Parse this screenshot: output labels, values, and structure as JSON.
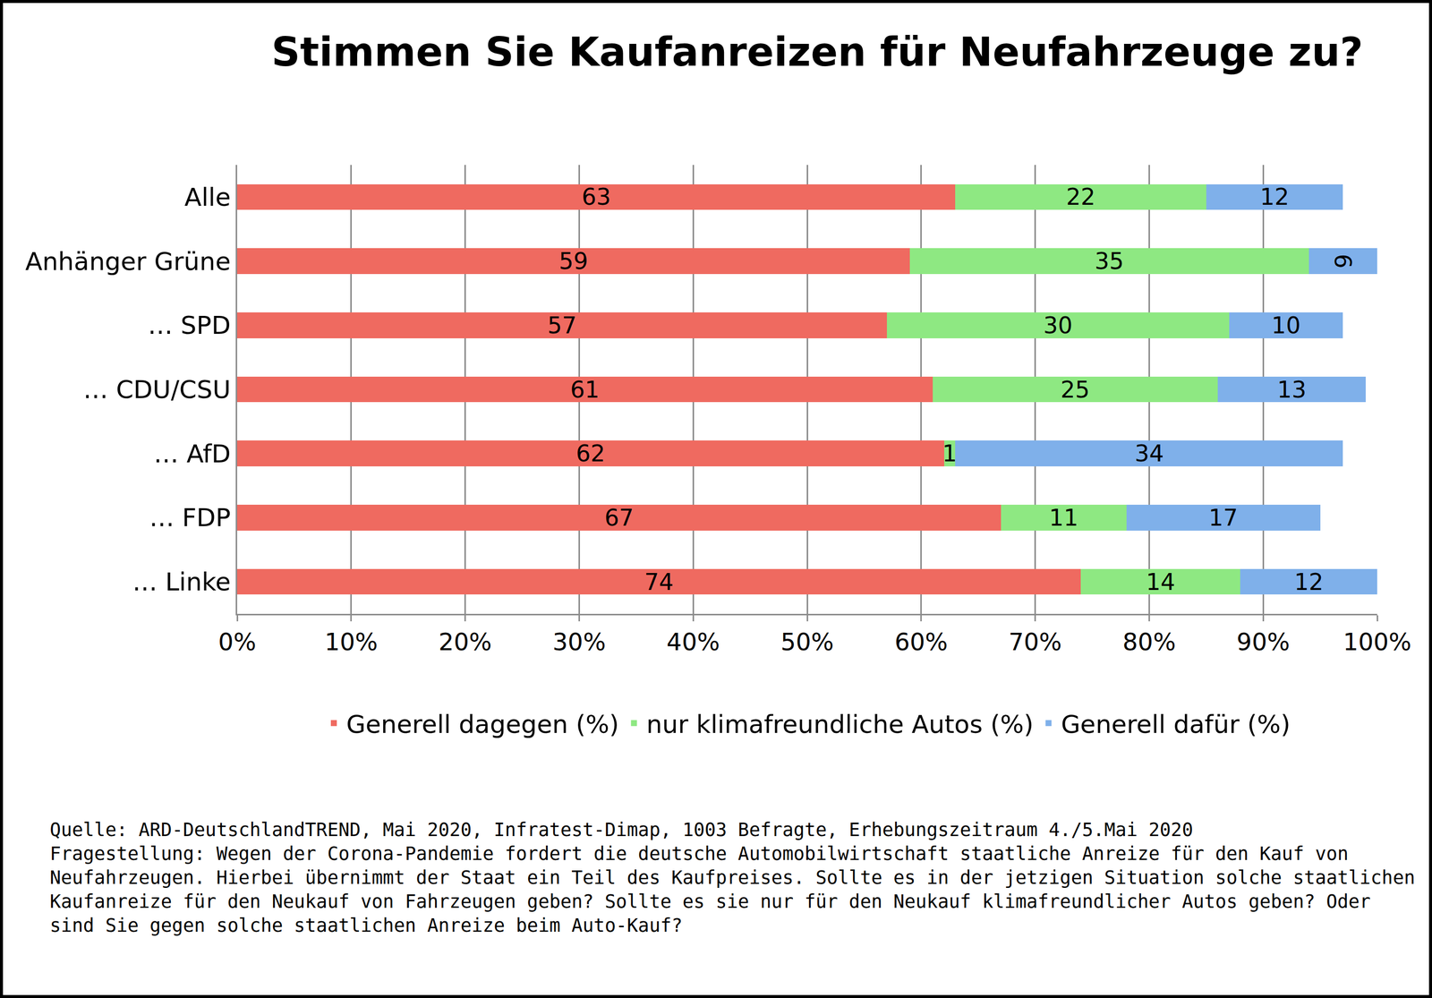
{
  "chart_data": {
    "type": "bar",
    "title": "Stimmen Sie Kaufanreizen für Neufahrzeuge zu?",
    "orientation": "horizontal",
    "stacked": true,
    "data_labels": true,
    "grid": true,
    "legend": "bottom",
    "categories": [
      "Alle",
      "Anhänger Grüne",
      "… SPD",
      "… CDU/CSU",
      "… AfD",
      "… FDP",
      "… Linke"
    ],
    "series": [
      {
        "name": "Generell dagegen (%)",
        "color": "#ef6a60",
        "values": [
          63,
          59,
          57,
          61,
          62,
          67,
          74
        ]
      },
      {
        "name": "nur klimafreundliche Autos (%)",
        "color": "#8ee882",
        "values": [
          22,
          35,
          30,
          25,
          1,
          11,
          14
        ]
      },
      {
        "name": "Generell dafür (%)",
        "color": "#7fb0ea",
        "values": [
          12,
          6,
          10,
          13,
          34,
          17,
          12
        ]
      }
    ],
    "xlim": [
      0,
      100
    ],
    "xticks": [
      {
        "value": 0,
        "label": "0%"
      },
      {
        "value": 10,
        "label": "10%"
      },
      {
        "value": 20,
        "label": "20%"
      },
      {
        "value": 30,
        "label": "30%"
      },
      {
        "value": 40,
        "label": "40%"
      },
      {
        "value": 50,
        "label": "50%"
      },
      {
        "value": 60,
        "label": "60%"
      },
      {
        "value": 70,
        "label": "70%"
      },
      {
        "value": 80,
        "label": "80%"
      },
      {
        "value": 90,
        "label": "90%"
      },
      {
        "value": 100,
        "label": "100%"
      }
    ],
    "annotations": [
      "Quelle: ARD-DeutschlandTREND, Mai 2020, Infratest-Dimap, 1003 Befragte, Erhebungszeitraum 4./5.Mai 2020",
      "Fragestellung: Wegen der Corona-Pandemie fordert die deutsche Automobilwirtschaft staatliche Anreize für den Kauf von",
      "Neufahrzeugen. Hierbei übernimmt der Staat ein Teil des Kaufpreises. Sollte es in der jetzigen Situation solche staatlichen",
      "Kaufanreize für den Neukauf von Fahrzeugen geben? Sollte es sie nur für den Neukauf klimafreundlicher Autos geben? Oder",
      "sind Sie gegen solche staatlichen Anreize beim Auto-Kauf?"
    ]
  }
}
